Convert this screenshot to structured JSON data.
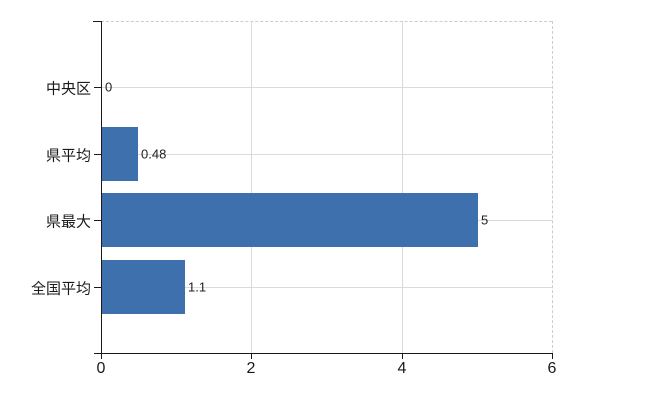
{
  "chart_data": {
    "type": "bar",
    "orientation": "horizontal",
    "title": "",
    "xlabel": "",
    "ylabel": "",
    "categories": [
      "中央区",
      "県平均",
      "県最大",
      "全国平均"
    ],
    "values": [
      0,
      0.48,
      5,
      1.1
    ],
    "value_labels": [
      "0",
      "0.48",
      "5",
      "1.1"
    ],
    "x_ticks": [
      0,
      2,
      4,
      6
    ],
    "x_tick_labels": [
      "0",
      "2",
      "4",
      "6"
    ],
    "xlim": [
      0,
      6
    ],
    "grid": true,
    "legend": false,
    "bar_color": "#3e70ad",
    "gridline_color_h": "#d7ded7",
    "gridline_color_v": "#d9d9d9",
    "axis_color": "#1a1a1a",
    "background_color": "#ffffff"
  }
}
